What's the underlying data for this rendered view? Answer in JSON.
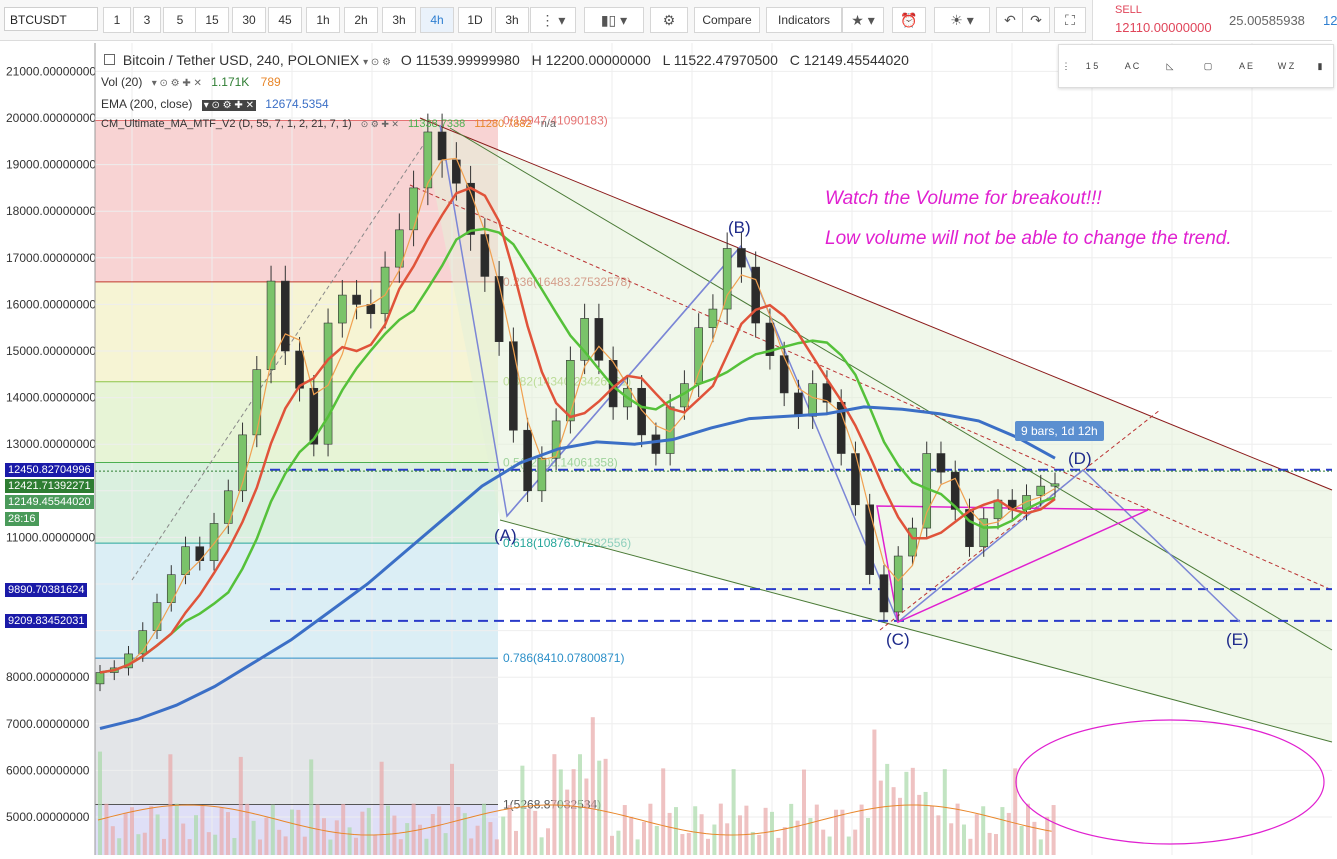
{
  "toolbar": {
    "symbol": "BTCUSDT",
    "intervals": [
      "1",
      "3",
      "5",
      "15",
      "30",
      "45",
      "1h",
      "2h",
      "3h",
      "4h",
      "1D",
      "3h"
    ],
    "active_interval": "4h",
    "compare_label": "Compare",
    "indicators_label": "Indicators"
  },
  "trade": {
    "sell_label": "SELL",
    "sell_price": "12110.00000000",
    "amount": "25.00585938",
    "partial": "12"
  },
  "legend": {
    "main_title": "Bitcoin / Tether USD, 240, POLONIEX",
    "open": "O 11539.99999980",
    "high": "H 12200.00000000",
    "low": "L 11522.47970500",
    "close": "C 12149.45544020",
    "vol_label": "Vol (20)",
    "vol_value": "1.171K",
    "vol_ma": "789",
    "ema_label": "EMA (200, close)",
    "ema_value": "12674.5354",
    "cm_label": "CM_Ultimate_MA_MTF_V2 (D, 55, 7, 1, 2, 21, 7, 1)",
    "cm_v1": "11338.7338",
    "cm_v2": "11280.7882",
    "cm_v3": "n/a"
  },
  "colors": {
    "up": "#4caf50",
    "down": "#333333",
    "ema200": "#3b6fc6",
    "ma_red": "#e0533a",
    "ma_green": "#55c13a",
    "annotation": "#e020d0",
    "dashed_blue": "#2a3bc9"
  },
  "chart_data": {
    "type": "candlestick",
    "symbol": "BTCUSDT",
    "exchange": "POLONIEX",
    "interval": "240",
    "yaxis_ticks": [
      "21000.00000000",
      "20000.00000000",
      "19000.00000000",
      "18000.00000000",
      "17000.00000000",
      "16000.00000000",
      "15000.00000000",
      "14000.00000000",
      "13000.00000000",
      "11000.00000000",
      "8000.00000000",
      "7000.00000000",
      "6000.00000000",
      "5000.00000000"
    ],
    "ylim": [
      4750,
      21600
    ],
    "price_tags": [
      {
        "value": "12450.82704996",
        "color": "#1a1aa8"
      },
      {
        "value": "12421.71392271",
        "color": "#2e7d32"
      },
      {
        "value": "12149.45544020",
        "color": "#4a9a5a"
      },
      {
        "value": "28:16",
        "color": "#4a9a5a"
      },
      {
        "value": "9890.70381624",
        "color": "#1a1aa8"
      },
      {
        "value": "9209.83452031",
        "color": "#1a1aa8"
      }
    ],
    "fib_levels": [
      {
        "ratio": "0",
        "text": "0(19947.41090183)",
        "value": 19947.41,
        "color": "#e57373"
      },
      {
        "ratio": "0.236",
        "text": "0.236(16483.27532578)",
        "value": 16483.28,
        "color": "#c0392b"
      },
      {
        "ratio": "0.382",
        "text": "0.382(14340.23426961)",
        "value": 14340.23,
        "color": "#8bc34a"
      },
      {
        "ratio": "0.5",
        "text": "0.5(12608.14061358)",
        "value": 12608.14,
        "color": "#4caf50"
      },
      {
        "ratio": "0.618",
        "text": "0.618(10876.07282556)",
        "value": 10876.07,
        "color": "#26a69a"
      },
      {
        "ratio": "0.786",
        "text": "0.786(8410.07800871)",
        "value": 8410.08,
        "color": "#2b8fc8"
      },
      {
        "ratio": "1",
        "text": "1(5268.87032534)",
        "value": 5268.87,
        "color": "#555555"
      }
    ],
    "pattern_points": [
      {
        "label": "(A)",
        "price": 11450
      },
      {
        "label": "(B)",
        "price": 17250
      },
      {
        "label": "(C)",
        "price": 9200
      },
      {
        "label": "(D)",
        "price": 12600
      },
      {
        "label": "(E)",
        "price": 9200
      }
    ],
    "horizontal_levels": [
      12450.83,
      9890.7,
      9209.83
    ],
    "annotations": [
      "Watch the Volume for breakout!!!",
      "Low volume will not be able to change the trend."
    ],
    "measure_label": "9 bars, 1d 12h",
    "close_series": [
      8100,
      8200,
      8500,
      9000,
      9600,
      10200,
      10800,
      10500,
      11300,
      12000,
      13200,
      14600,
      16500,
      15000,
      14200,
      13000,
      15600,
      16200,
      16000,
      15800,
      16800,
      17600,
      18500,
      19700,
      19100,
      18600,
      17500,
      16600,
      15200,
      13300,
      12000,
      12700,
      13500,
      14800,
      15700,
      14800,
      13800,
      14200,
      13200,
      12800,
      13800,
      14300,
      15500,
      15900,
      17200,
      16800,
      15600,
      14900,
      14100,
      13600,
      14300,
      13900,
      12800,
      11700,
      10200,
      9400,
      10600,
      11200,
      12800,
      12400,
      11600,
      10800,
      11400,
      11800,
      11600,
      11900,
      12100,
      12150
    ],
    "ema200_series": [
      6900,
      7100,
      7400,
      7800,
      8300,
      8800,
      9400,
      10000,
      10700,
      11400,
      12100,
      12600,
      12900,
      13050,
      13000,
      13100,
      13350,
      13550,
      13600,
      13650,
      13800,
      13750,
      13650,
      13500,
      13150,
      12700
    ],
    "volume_bars_max": 8800
  },
  "vol_axis_note": "",
  "misc": {
    "lower_pct": "2 47 7 79"
  }
}
